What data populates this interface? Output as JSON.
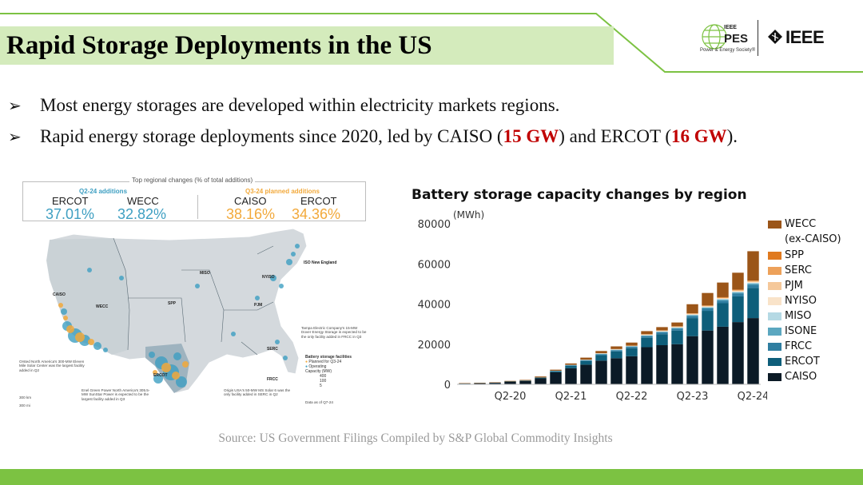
{
  "slide": {
    "title": "Rapid Storage Deployments in the US",
    "bullets": [
      {
        "text": "Most energy storages are developed within electricity markets regions."
      },
      {
        "prefix": "Rapid energy storage deployments since 2020, led by CAISO (",
        "hl1": "15 GW",
        "mid": ") and ERCOT (",
        "hl2": "16 GW",
        "suffix": ")."
      }
    ],
    "source": "Source: US Government Filings Compiled by S&P Global Commodity Insights",
    "bullet_glyph": "➢"
  },
  "logos": {
    "pes_small": "IEEE",
    "pes": "PES",
    "pes_tagline": "Power & Energy Society®",
    "ieee": "IEEE"
  },
  "map": {
    "header": "Top regional changes (% of total additions)",
    "left_group": {
      "title": "Q2-24 additions",
      "items": [
        {
          "region": "ERCOT",
          "pct": "37.01%"
        },
        {
          "region": "WECC",
          "pct": "32.82%"
        }
      ]
    },
    "right_group": {
      "title": "Q3-24 planned additions",
      "items": [
        {
          "region": "CAISO",
          "pct": "38.16%"
        },
        {
          "region": "ERCOT",
          "pct": "34.36%"
        }
      ]
    },
    "region_labels": [
      "MISO",
      "NYISO",
      "ISO New England",
      "CAISO",
      "WECC",
      "SPP",
      "PJM",
      "SERC",
      "ERCOT",
      "FRCC"
    ],
    "annotations": {
      "tampa": "Tampa Electric Company's 15-MW Dover Energy Storage is expected to be the only facility added in FRCC in Q3",
      "orsted": "Orsted North America's 300-MW Eleven Mile Solar Center was the largest facility added in Q2",
      "enel": "Enel Green Power North America's 305.5-MW SunStar Power is expected to be the largest facility added in Q3",
      "origis": "Origis USA's 50-MW MS Solar 6 was the only facility added in SERC in Q2",
      "scale1": "300 km",
      "scale2": "300 mi",
      "data_as_of": "Data as of Q7-24"
    },
    "legend": {
      "title": "Battery storage facilities",
      "planned": "Planned for Q3-24",
      "operating": "Operating",
      "capacity_title": "Capacity (MW)",
      "cap_values": [
        "400",
        "100",
        "5"
      ]
    },
    "colors": {
      "operating": "#3e9fc2",
      "planned": "#f2a93b"
    }
  },
  "chart_data": {
    "type": "bar",
    "stacked": true,
    "title": "Battery storage capacity changes by region",
    "ylabel": "(MWh)",
    "ylim": [
      0,
      80000
    ],
    "yticks": [
      0,
      20000,
      40000,
      60000,
      80000
    ],
    "grid": false,
    "legend_position": "right",
    "categories": [
      "Q3-19",
      "Q4-19",
      "Q1-20",
      "Q2-20",
      "Q3-20",
      "Q4-20",
      "Q1-21",
      "Q2-21",
      "Q3-21",
      "Q4-21",
      "Q1-22",
      "Q2-22",
      "Q3-22",
      "Q4-22",
      "Q1-23",
      "Q2-23",
      "Q3-23",
      "Q4-23",
      "Q1-24",
      "Q2-24"
    ],
    "x_tick_labels": [
      {
        "index": 3,
        "label": "Q2-20"
      },
      {
        "index": 7,
        "label": "Q2-21"
      },
      {
        "index": 11,
        "label": "Q2-22"
      },
      {
        "index": 15,
        "label": "Q2-23"
      },
      {
        "index": 19,
        "label": "Q2-24"
      }
    ],
    "series": [
      {
        "name": "CAISO",
        "color": "#0b1a26",
        "values": [
          300,
          500,
          700,
          1200,
          1700,
          3000,
          6000,
          8000,
          9800,
          11800,
          13000,
          14000,
          18500,
          19500,
          20000,
          24000,
          26800,
          28700,
          31000,
          33000
        ]
      },
      {
        "name": "ERCOT",
        "color": "#0e5e7a",
        "values": [
          100,
          100,
          100,
          200,
          200,
          300,
          500,
          1200,
          1800,
          2700,
          3400,
          4000,
          4700,
          5500,
          6800,
          9000,
          9800,
          11700,
          12800,
          15000
        ]
      },
      {
        "name": "FRCC",
        "color": "#2f7ea1",
        "values": [
          0,
          0,
          0,
          0,
          0,
          100,
          200,
          300,
          400,
          500,
          600,
          700,
          800,
          900,
          1000,
          1100,
          1200,
          1300,
          1500,
          1600
        ]
      },
      {
        "name": "ISONE",
        "color": "#5ba7c0",
        "values": [
          0,
          0,
          0,
          0,
          0,
          0,
          100,
          100,
          100,
          200,
          200,
          200,
          300,
          300,
          300,
          400,
          400,
          500,
          500,
          600
        ]
      },
      {
        "name": "MISO",
        "color": "#b5d9e4",
        "values": [
          0,
          0,
          0,
          0,
          0,
          0,
          0,
          100,
          100,
          100,
          100,
          100,
          200,
          200,
          200,
          200,
          300,
          300,
          300,
          400
        ]
      },
      {
        "name": "NYISO",
        "color": "#f9e3c9",
        "values": [
          0,
          0,
          0,
          0,
          0,
          0,
          0,
          0,
          0,
          100,
          100,
          100,
          100,
          100,
          200,
          200,
          200,
          200,
          300,
          300
        ]
      },
      {
        "name": "PJM",
        "color": "#f5c89a",
        "values": [
          0,
          0,
          0,
          0,
          0,
          0,
          0,
          0,
          100,
          100,
          100,
          100,
          200,
          200,
          200,
          200,
          300,
          300,
          300,
          300
        ]
      },
      {
        "name": "SERC",
        "color": "#eda15a",
        "values": [
          0,
          0,
          0,
          0,
          0,
          0,
          0,
          0,
          0,
          0,
          100,
          100,
          100,
          100,
          100,
          200,
          200,
          200,
          300,
          300
        ]
      },
      {
        "name": "SPP",
        "color": "#e07a1f",
        "values": [
          0,
          0,
          0,
          0,
          0,
          0,
          0,
          0,
          0,
          0,
          0,
          0,
          100,
          100,
          100,
          100,
          100,
          200,
          200,
          200
        ]
      },
      {
        "name": "WECC\n(ex-CAISO)",
        "color": "#9b5518",
        "values": [
          200,
          200,
          200,
          300,
          300,
          500,
          500,
          700,
          1000,
          1100,
          1300,
          1500,
          1500,
          1600,
          1900,
          4500,
          6200,
          7300,
          8400,
          14600
        ]
      }
    ]
  }
}
